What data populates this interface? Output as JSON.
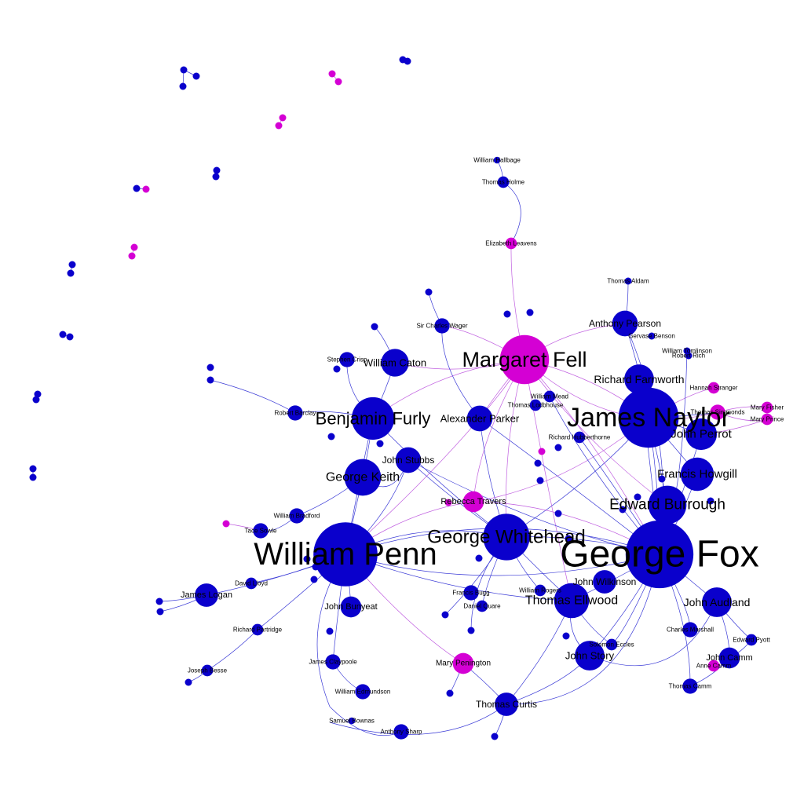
{
  "colors": {
    "male": "#0a00cc",
    "female": "#d400d4",
    "edge": "#3a3ad6",
    "edge_female": "#c060e0",
    "label": "#000000"
  },
  "nodes": [
    {
      "id": "fox",
      "label": "George Fox",
      "gender": "male",
      "degree": 40
    },
    {
      "id": "penn",
      "label": "William Penn",
      "gender": "male",
      "degree": 36
    },
    {
      "id": "naylor",
      "label": "James Naylor",
      "gender": "male",
      "degree": 32
    },
    {
      "id": "fell",
      "label": "Margaret Fell",
      "gender": "female",
      "degree": 22
    },
    {
      "id": "whitehead",
      "label": "George Whitehead",
      "gender": "male",
      "degree": 20
    },
    {
      "id": "furly",
      "label": "Benjamin Furly",
      "gender": "male",
      "degree": 17
    },
    {
      "id": "burrough",
      "label": "Edward Burrough",
      "gender": "male",
      "degree": 14
    },
    {
      "id": "keith",
      "label": "George Keith",
      "gender": "male",
      "degree": 13
    },
    {
      "id": "ellwood",
      "label": "Thomas Ellwood",
      "gender": "male",
      "degree": 12
    },
    {
      "id": "howgill",
      "label": "Francis Howgill",
      "gender": "male",
      "degree": 11
    },
    {
      "id": "perrot",
      "label": "John Perrot",
      "gender": "male",
      "degree": 10
    },
    {
      "id": "story",
      "label": "John Story",
      "gender": "male",
      "degree": 9
    },
    {
      "id": "audland",
      "label": "John Audland",
      "gender": "male",
      "degree": 9
    },
    {
      "id": "farnworth",
      "label": "Richard Farnworth",
      "gender": "male",
      "degree": 9
    },
    {
      "id": "caton",
      "label": "William Caton",
      "gender": "male",
      "degree": 8
    },
    {
      "id": "stubbs",
      "label": "John Stubbs",
      "gender": "male",
      "degree": 7
    },
    {
      "id": "parker",
      "label": "Alexander Parker",
      "gender": "male",
      "degree": 7
    },
    {
      "id": "pearson",
      "label": "Anthony Pearson",
      "gender": "male",
      "degree": 7
    },
    {
      "id": "wilkinson",
      "label": "John Wilkinson",
      "gender": "male",
      "degree": 6
    },
    {
      "id": "logan",
      "label": "James Logan",
      "gender": "male",
      "degree": 6
    },
    {
      "id": "curtis",
      "label": "Thomas Curtis",
      "gender": "male",
      "degree": 6
    },
    {
      "id": "bunyeat",
      "label": "John Bunyeat",
      "gender": "male",
      "degree": 5
    },
    {
      "id": "camm",
      "label": "John Camm",
      "gender": "male",
      "degree": 5
    },
    {
      "id": "travers",
      "label": "Rebecca Travers",
      "gender": "female",
      "degree": 5
    },
    {
      "id": "penington",
      "label": "Mary Penington",
      "gender": "female",
      "degree": 5
    },
    {
      "id": "bradford",
      "label": "William Bradford",
      "gender": "male",
      "degree": 3
    },
    {
      "id": "barclay",
      "label": "Robert Barclay",
      "gender": "male",
      "degree": 3
    },
    {
      "id": "crisp",
      "label": "Stephen Crisp",
      "gender": "male",
      "degree": 3
    },
    {
      "id": "sharp",
      "label": "Anthony Sharp",
      "gender": "male",
      "degree": 3
    },
    {
      "id": "tcamm",
      "label": "Thomas Camm",
      "gender": "male",
      "degree": 3
    },
    {
      "id": "marshall",
      "label": "Charles Marshall",
      "gender": "male",
      "degree": 3
    },
    {
      "id": "tacebowle",
      "label": "Tace Sowle",
      "gender": "male",
      "degree": 3
    },
    {
      "id": "dimmonds",
      "label": "Thomas Simmonds",
      "gender": "female",
      "degree": 3
    },
    {
      "id": "wager",
      "label": "Sir Charles Wager",
      "gender": "male",
      "degree": 3
    },
    {
      "id": "claypoole",
      "label": "James Claypoole",
      "gender": "male",
      "degree": 3
    },
    {
      "id": "edmundson",
      "label": "William Edmundson",
      "gender": "male",
      "degree": 3
    },
    {
      "id": "bugg",
      "label": "Francis Bugg",
      "gender": "male",
      "degree": 3
    },
    {
      "id": "beavens",
      "label": "Elizabeth Leavens",
      "gender": "female",
      "degree": 2
    },
    {
      "id": "holme",
      "label": "Thomas Holme",
      "gender": "male",
      "degree": 2
    },
    {
      "id": "hallbage",
      "label": "William Hallbage",
      "gender": "male",
      "degree": 1
    },
    {
      "id": "mead",
      "label": "William Mead",
      "gender": "male",
      "degree": 2
    },
    {
      "id": "loddhouse",
      "label": "Thomas Lodbhouse",
      "gender": "male",
      "degree": 2
    },
    {
      "id": "hubberthorne",
      "label": "Richard Hubberthorne",
      "gender": "male",
      "degree": 2
    },
    {
      "id": "david",
      "label": "David Lloyd",
      "gender": "male",
      "degree": 2
    },
    {
      "id": "partridge",
      "label": "Richard Partridge",
      "gender": "male",
      "degree": 2
    },
    {
      "id": "besse",
      "label": "Joseph Besse",
      "gender": "male",
      "degree": 2
    },
    {
      "id": "rogers",
      "label": "William Rogers",
      "gender": "male",
      "degree": 2
    },
    {
      "id": "daniel",
      "label": "Daniel Quare",
      "gender": "male",
      "degree": 2
    },
    {
      "id": "eccles",
      "label": "Solomon Eccles",
      "gender": "male",
      "degree": 2
    },
    {
      "id": "pyott",
      "label": "Edward Pyott",
      "gender": "male",
      "degree": 2
    },
    {
      "id": "annecamm",
      "label": "Anne Camm",
      "gender": "female",
      "degree": 2
    },
    {
      "id": "stranger",
      "label": "Hannah Stranger",
      "gender": "female",
      "degree": 2
    },
    {
      "id": "fisher",
      "label": "Mary Fisher",
      "gender": "female",
      "degree": 2
    },
    {
      "id": "prince",
      "label": "Mary Prince",
      "gender": "female",
      "degree": 2
    },
    {
      "id": "tomlinson",
      "label": "William Tomlinson",
      "gender": "male",
      "degree": 1
    },
    {
      "id": "rich",
      "label": "Robert Rich",
      "gender": "male",
      "degree": 1
    },
    {
      "id": "gervase",
      "label": "Gervase Benson",
      "gender": "male",
      "degree": 1
    },
    {
      "id": "aldam",
      "label": "Thomas Aldam",
      "gender": "male",
      "degree": 1
    },
    {
      "id": "samuel",
      "label": "Samuel Bownas",
      "gender": "male",
      "degree": 1
    }
  ]
}
